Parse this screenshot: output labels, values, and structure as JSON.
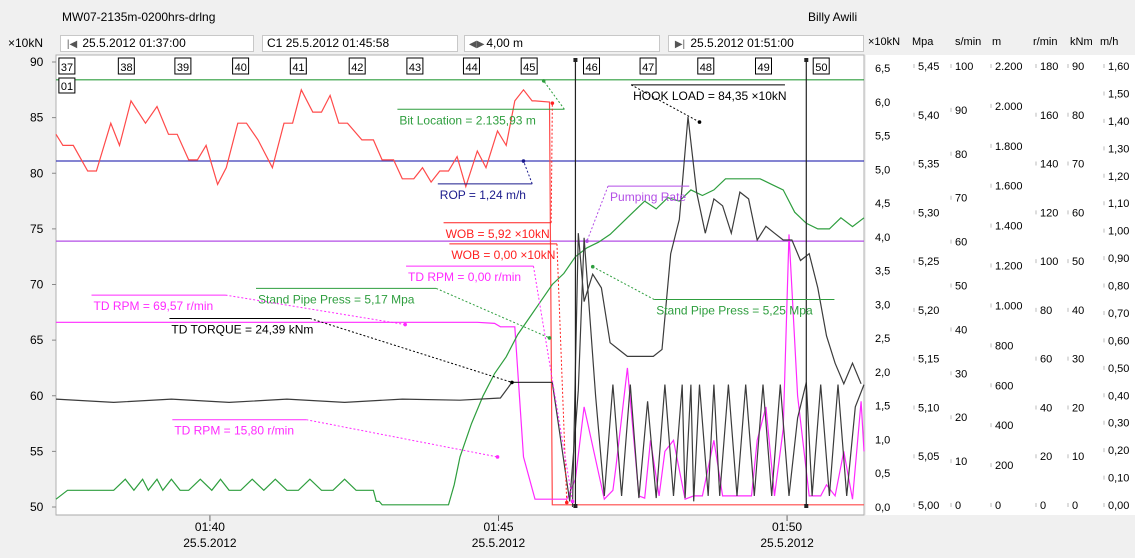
{
  "header": {
    "title": "MW07-2135m-0200hrs-drlng",
    "user": "Billy Awili"
  },
  "toolbar": {
    "unit": "×10kN",
    "start_time": "25.5.2012 01:37:00",
    "cursor_label": "C1",
    "cursor_time": "25.5.2012 01:45:58",
    "depth_delta": "4,00 m",
    "end_time": "25.5.2012 01:51:00"
  },
  "icons": {
    "nav_left": "nav-left-icon",
    "nav_both": "nav-both-icon",
    "nav_right": "nav-right-icon"
  },
  "chart_data": {
    "type": "line",
    "time_range": [
      "25.5.2012 01:37:00",
      "25.5.2012 01:51:00"
    ],
    "x_ticks": [
      {
        "t": 2.667,
        "time": "01:40",
        "date": "25.5.2012"
      },
      {
        "t": 7.667,
        "time": "01:45",
        "date": "25.5.2012"
      },
      {
        "t": 12.667,
        "time": "01:50",
        "date": "25.5.2012"
      }
    ],
    "left_axis": {
      "unit": "×10kN",
      "min": 50,
      "max": 90,
      "ticks": [
        "50",
        "55",
        "60",
        "65",
        "70",
        "75",
        "80",
        "85",
        "90"
      ]
    },
    "depth_marks": {
      "labels": [
        "37",
        "38",
        "39",
        "40",
        "41",
        "42",
        "43",
        "44",
        "45",
        "46",
        "47",
        "48",
        "49",
        "50"
      ],
      "t": [
        0.05,
        1.08,
        2.06,
        3.06,
        4.06,
        5.08,
        6.08,
        7.06,
        8.06,
        9.14,
        10.12,
        11.12,
        12.12,
        13.12
      ],
      "sub_label": "01"
    },
    "cursor_lines_t": [
      9.0,
      13.0
    ],
    "right_axes": [
      {
        "unit": "×10kN",
        "min": 0,
        "max": 6.5,
        "ticks": [
          "0,0",
          "0,5",
          "1,0",
          "1,5",
          "2,0",
          "2,5",
          "3,0",
          "3,5",
          "4,0",
          "4,5",
          "5,0",
          "5,5",
          "6,0",
          "6,5"
        ]
      },
      {
        "unit": "Mpa",
        "min": 5.0,
        "max": 5.45,
        "ticks": [
          "5,00",
          "5,05",
          "5,10",
          "5,15",
          "5,20",
          "5,25",
          "5,30",
          "5,35",
          "5,40",
          "5,45"
        ]
      },
      {
        "unit": "s/min",
        "min": 0,
        "max": 100,
        "ticks": [
          "0",
          "10",
          "20",
          "30",
          "40",
          "50",
          "60",
          "70",
          "80",
          "90",
          "100"
        ]
      },
      {
        "unit": "m",
        "min": 0,
        "max": 2200,
        "ticks": [
          "0",
          "200",
          "400",
          "600",
          "800",
          "1.000",
          "1.200",
          "1.400",
          "1.600",
          "1.800",
          "2.000",
          "2.200"
        ]
      },
      {
        "unit": "r/min",
        "min": 0,
        "max": 180,
        "ticks": [
          "0",
          "20",
          "40",
          "60",
          "80",
          "100",
          "120",
          "140",
          "160",
          "180"
        ]
      },
      {
        "unit": "kNm",
        "min": 0,
        "max": 90,
        "ticks": [
          "0",
          "10",
          "20",
          "30",
          "40",
          "50",
          "60",
          "70",
          "80",
          "90"
        ]
      },
      {
        "unit": "m/h",
        "min": 0,
        "max": 1.6,
        "ticks": [
          "0,00",
          "0,10",
          "0,20",
          "0,30",
          "0,40",
          "0,50",
          "0,60",
          "0,70",
          "0,80",
          "0,90",
          "1,00",
          "1,10",
          "1,20",
          "1,30",
          "1,40",
          "1,50",
          "1,60"
        ]
      }
    ],
    "series": [
      {
        "name": "Bit Location",
        "color": "#2e9e3e",
        "axis": "left",
        "x": [
          0,
          14
        ],
        "y": [
          88.4,
          88.4
        ]
      },
      {
        "name": "ROP",
        "color": "#3a3ab8",
        "axis": "left",
        "x": [
          0,
          14
        ],
        "y": [
          81.1,
          81.1
        ]
      },
      {
        "name": "Pumping Rate",
        "color": "#b34ee6",
        "axis": "left",
        "x": [
          0,
          14
        ],
        "y": [
          73.9,
          73.9
        ]
      },
      {
        "name": "HOOK LOAD",
        "color": "#ff4a4a",
        "axis": "left",
        "x": [
          0,
          0.12,
          0.3,
          0.55,
          0.7,
          0.95,
          1.1,
          1.3,
          1.55,
          1.75,
          1.95,
          2.1,
          2.3,
          2.45,
          2.6,
          2.8,
          2.95,
          3.15,
          3.3,
          3.5,
          3.75,
          3.95,
          4.1,
          4.25,
          4.45,
          4.6,
          4.75,
          4.9,
          5.05,
          5.3,
          5.5,
          5.65,
          5.85,
          6.0,
          6.2,
          6.35,
          6.5,
          6.65,
          6.8,
          6.95,
          7.1,
          7.3,
          7.45,
          7.65,
          7.8,
          7.95,
          8.1,
          8.25,
          8.3,
          8.55,
          8.6,
          14
        ],
        "y": [
          83.5,
          82.5,
          82.5,
          80.2,
          80.2,
          84.5,
          82.5,
          86.5,
          84.5,
          86,
          83.5,
          83.5,
          81.2,
          81.2,
          82.5,
          79,
          80.5,
          84.5,
          84.5,
          83,
          80.5,
          84.5,
          84.5,
          87.5,
          85.5,
          85.5,
          87,
          84.5,
          84.5,
          83,
          83,
          81.2,
          81.2,
          79.5,
          79.5,
          80.5,
          79.2,
          80.2,
          80.2,
          81.5,
          78.8,
          82,
          80.5,
          83.8,
          82.5,
          86.5,
          87.5,
          86.5,
          86.5,
          86.4,
          50.2,
          50.2
        ]
      },
      {
        "name": "TD RPM",
        "color": "#ff2aff",
        "axis": "left",
        "x": [
          0,
          7.3,
          7.6,
          7.7,
          7.95,
          8.1,
          8.3,
          8.65,
          8.85,
          9.0,
          9.15,
          9.5,
          9.65,
          9.7,
          9.9,
          10.1,
          10.2,
          10.3,
          10.45,
          10.55,
          10.7,
          10.9,
          11.05,
          11.2,
          11.4,
          11.55,
          11.75,
          11.9,
          12.05,
          12.15,
          12.3,
          12.45,
          12.6,
          12.7,
          12.85,
          13.05,
          13.25,
          13.35,
          13.5,
          13.65,
          13.8,
          13.95,
          14
        ],
        "y": [
          66.6,
          66.6,
          66.5,
          66.2,
          66.2,
          54.5,
          50.7,
          50.7,
          50.7,
          52.5,
          59,
          50.7,
          51.5,
          53.5,
          62.5,
          51,
          50.8,
          56,
          51,
          55,
          56,
          50.7,
          51,
          51,
          56,
          51,
          51,
          51,
          51,
          56,
          59,
          51,
          57,
          74.5,
          60,
          51,
          51,
          52,
          51,
          55,
          50.7,
          59.5,
          55
        ]
      },
      {
        "name": "Stand Pipe Press",
        "color": "#2e9e3e",
        "axis": "left",
        "x": [
          0,
          0.2,
          1.0,
          1.2,
          1.35,
          1.5,
          1.6,
          1.75,
          1.85,
          2.0,
          2.15,
          2.3,
          2.5,
          2.7,
          2.85,
          3.0,
          3.2,
          3.4,
          3.6,
          3.8,
          4.0,
          4.2,
          4.4,
          4.6,
          4.8,
          5.0,
          5.2,
          5.4,
          5.5,
          5.55,
          5.6,
          5.65,
          6.8,
          6.9,
          7.0,
          7.2,
          7.4,
          7.6,
          7.8,
          8.0,
          8.2,
          8.4,
          8.6,
          8.8,
          9.0,
          9.2,
          9.4,
          9.6,
          9.8,
          10.0,
          10.2,
          10.4,
          10.6,
          10.8,
          11.0,
          11.2,
          11.4,
          11.6,
          11.8,
          12.0,
          12.2,
          12.4,
          12.6,
          12.8,
          13.0,
          13.2,
          13.4,
          13.6,
          13.8,
          14.0
        ],
        "y": [
          50.7,
          51.5,
          51.5,
          52.5,
          51.5,
          52.5,
          51.5,
          52.5,
          51.5,
          52.5,
          51.5,
          51.5,
          52.5,
          51.5,
          52.5,
          51.5,
          51.5,
          52.5,
          51.5,
          52.5,
          51.5,
          51.5,
          52.5,
          51.5,
          51.5,
          52.5,
          51.5,
          51.5,
          51.5,
          50.5,
          50.5,
          50.2,
          50.2,
          52,
          54.5,
          57.5,
          60,
          62,
          63.5,
          65.5,
          67,
          68.5,
          70,
          71,
          72.5,
          73.3,
          73.8,
          74.5,
          75.5,
          76.5,
          77.5,
          76.8,
          77.8,
          77.5,
          78.5,
          78,
          78.5,
          79.5,
          79.5,
          79.5,
          79.5,
          79,
          78.5,
          76.5,
          75.5,
          75,
          75,
          76,
          75.2,
          76
        ]
      },
      {
        "name": "TD TORQUE",
        "color": "#3c3c3c",
        "axis": "left",
        "x": [
          0,
          1,
          2,
          3,
          4,
          5,
          6,
          7,
          7.7,
          7.9,
          8.05,
          8.6,
          8.9,
          9.0,
          9.05,
          9.15,
          9.35,
          9.5,
          9.65,
          9.8,
          9.95,
          10.1,
          10.25,
          10.4,
          10.55,
          10.7,
          10.85,
          10.9,
          11.0,
          11.05,
          11.15,
          11.3,
          11.4,
          11.5,
          11.65,
          11.8,
          11.95,
          12.1,
          12.25,
          12.4,
          12.55,
          12.7,
          12.85,
          13.0,
          13.1,
          13.25,
          13.4,
          13.55,
          13.7,
          13.85,
          14.0
        ],
        "y": [
          59.7,
          59.4,
          59.7,
          59.4,
          59.7,
          59.4,
          59.7,
          59.6,
          59.8,
          61.2,
          61.2,
          61.2,
          50.5,
          57,
          60.5,
          74.2,
          60,
          51,
          61,
          51,
          61,
          50.8,
          59.5,
          50.8,
          61,
          51,
          61,
          50.8,
          61,
          50.5,
          61,
          51,
          61,
          51,
          61,
          51,
          61,
          51,
          61,
          51,
          61,
          51,
          58,
          61.2,
          51,
          61,
          51,
          61,
          51,
          59,
          61
        ]
      },
      {
        "name": "Hook Load (right)",
        "color": "#3c3c3c",
        "axis": "right0",
        "x": [
          8.95,
          9.05,
          9.15,
          9.3,
          9.45,
          9.6,
          9.75,
          9.9,
          10.05,
          10.2,
          10.35,
          10.5,
          10.65,
          10.8,
          10.95,
          11.1,
          11.25,
          11.4,
          11.55,
          11.7,
          11.85,
          12.0,
          12.15,
          12.3,
          12.45,
          12.6,
          12.75,
          12.9,
          13.05,
          13.2,
          13.35,
          13.5,
          13.65,
          13.8,
          13.95
        ],
        "y": [
          0.0,
          4.0,
          3.0,
          3.4,
          3.2,
          2.4,
          2.3,
          2.2,
          2.2,
          2.2,
          2.2,
          2.3,
          3.7,
          4.2,
          5.7,
          4.6,
          4.0,
          4.5,
          4.4,
          4.0,
          4.6,
          4.5,
          3.9,
          4.1,
          4.0,
          3.9,
          3.9,
          3.6,
          3.7,
          3.2,
          2.5,
          2.1,
          1.8,
          2.1,
          1.8
        ]
      }
    ],
    "annotations": [
      {
        "text": "Bit Location = 2.135,93 m",
        "color": "#2e9e3e",
        "t": 5.95,
        "y": 84.4,
        "pt": 8.45,
        "py": 88.3
      },
      {
        "text": "HOOK LOAD = 84,35 ×10kN",
        "color": "#000000",
        "t": 10.0,
        "y": 86.6,
        "pt": 11.15,
        "py": 84.6
      },
      {
        "text": "ROP = 1,24 m/h",
        "color": "#1a1a8c",
        "t": 6.65,
        "y": 77.7,
        "pt": 8.1,
        "py": 81.1
      },
      {
        "text": "Pumping Rate",
        "color": "#b34ee6",
        "t": 9.6,
        "y": 77.5,
        "pt": 9.2,
        "py": 73.9
      },
      {
        "text": "WOB = 5,92 ×10kN",
        "color": "#ff2020",
        "t": 6.75,
        "y": 74.2,
        "pt": 8.6,
        "py": 86.3
      },
      {
        "text": "WOB = 0,00 ×10kN",
        "color": "#ff2020",
        "t": 6.85,
        "y": 72.3,
        "pt": 8.85,
        "py": 50.4
      },
      {
        "text": "TD RPM = 0,00 r/min",
        "color": "#ff2aff",
        "t": 6.1,
        "y": 70.3,
        "pt": 8.95,
        "py": 50.5
      },
      {
        "text": "Stand Pipe Press = 5,17 Mpa",
        "color": "#2e9e3e",
        "t": 3.5,
        "y": 68.3,
        "pt": 8.55,
        "py": 65.2
      },
      {
        "text": "Stand Pipe Press = 5,25 Mpa",
        "color": "#2e9e3e",
        "t": 10.4,
        "y": 67.3,
        "pt": 9.3,
        "py": 71.6
      },
      {
        "text": "TD RPM = 69,57 r/min",
        "color": "#ff2aff",
        "t": 0.65,
        "y": 67.7,
        "pt": 6.05,
        "py": 66.4
      },
      {
        "text": "TD TORQUE = 24,39 kNm",
        "color": "#000000",
        "t": 2.0,
        "y": 65.6,
        "pt": 7.9,
        "py": 61.2
      },
      {
        "text": "TD RPM = 15,80 r/min",
        "color": "#ff2aff",
        "t": 2.05,
        "y": 56.5,
        "pt": 7.65,
        "py": 54.5
      }
    ]
  }
}
